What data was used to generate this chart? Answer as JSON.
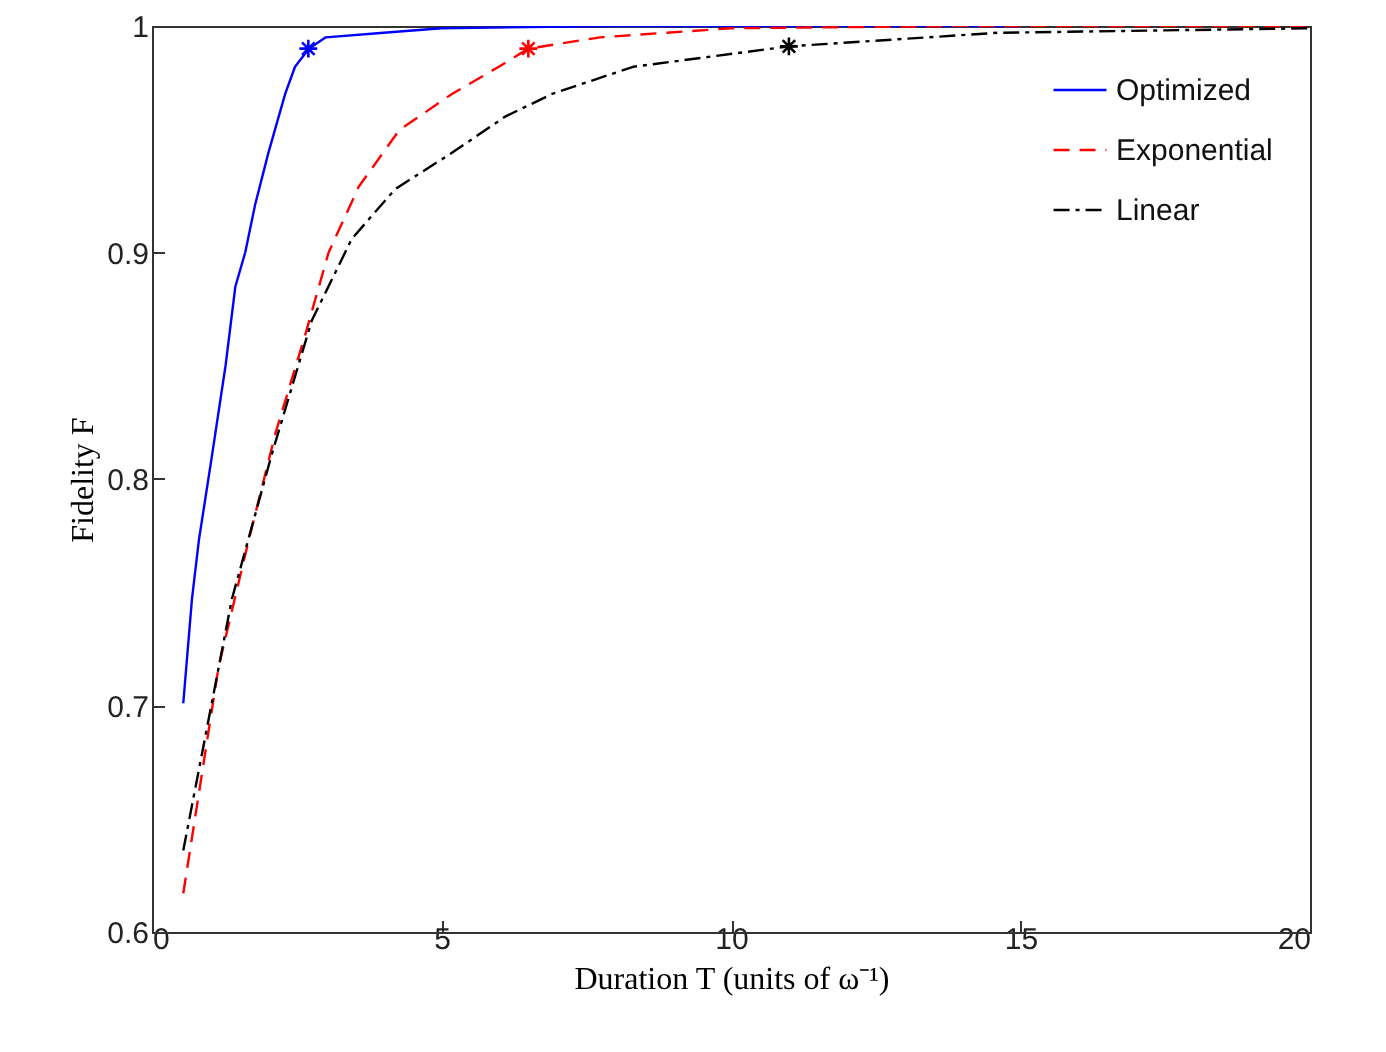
{
  "chart_data": {
    "type": "line",
    "xlabel": "Duration T (units of ω⁻¹)",
    "ylabel": "Fidelity F",
    "xlim": [
      0,
      20
    ],
    "xticks": [
      0,
      5,
      10,
      15,
      20
    ],
    "ylim": [
      0.6,
      1
    ],
    "yticks": [
      {
        "value": 0.6,
        "label": "0.6"
      },
      {
        "value": 0.7,
        "label": "0.7"
      },
      {
        "value": 0.8,
        "label": "0.8"
      },
      {
        "value": 0.9,
        "label": "0.9"
      },
      {
        "value": 1,
        "label": "1"
      }
    ],
    "grid": false,
    "legend": "top right",
    "series": [
      {
        "name": "Optimized",
        "color": "#0000ff",
        "line_style": "solid",
        "x": [
          0.54,
          0.69,
          0.81,
          1.04,
          1.27,
          1.44,
          1.61,
          1.78,
          2.01,
          2.3,
          2.47,
          2.71,
          3.0,
          4.0,
          5.0,
          8.0,
          12.0,
          15.0
        ],
        "values": [
          0.701,
          0.747,
          0.773,
          0.811,
          0.85,
          0.885,
          0.9,
          0.921,
          0.944,
          0.97,
          0.982,
          0.99,
          0.995,
          0.997,
          0.999,
          1.0,
          1.0,
          1.0
        ]
      },
      {
        "name": "Exponential",
        "color": "#ff0000",
        "line_style": "dashed",
        "x": [
          0.54,
          1.15,
          1.67,
          2.13,
          2.65,
          3.05,
          3.57,
          4.27,
          5.18,
          5.99,
          6.5,
          7.74,
          10.0,
          14.0,
          20.0
        ],
        "values": [
          0.617,
          0.717,
          0.773,
          0.82,
          0.864,
          0.9,
          0.929,
          0.954,
          0.97,
          0.982,
          0.99,
          0.995,
          0.999,
          1.0,
          1.0
        ]
      },
      {
        "name": "Linear",
        "color": "#000000",
        "line_style": "dashdot",
        "x": [
          0.54,
          1.38,
          2.07,
          2.76,
          3.45,
          4.2,
          5.18,
          6.1,
          6.91,
          8.31,
          11.0,
          14.6,
          20.0
        ],
        "values": [
          0.636,
          0.747,
          0.811,
          0.87,
          0.906,
          0.928,
          0.944,
          0.96,
          0.97,
          0.982,
          0.991,
          0.997,
          0.999
        ]
      },
      {
        "type": "scatter",
        "marker": "cross",
        "color": "#0000ff",
        "x": [
          2.7
        ],
        "values": [
          0.99
        ]
      },
      {
        "type": "scatter",
        "marker": "cross",
        "color": "#ff0000",
        "x": [
          6.5
        ],
        "values": [
          0.99
        ]
      },
      {
        "type": "scatter",
        "marker": "cross",
        "color": "#000000",
        "x": [
          11.0
        ],
        "values": [
          0.991
        ]
      }
    ]
  }
}
